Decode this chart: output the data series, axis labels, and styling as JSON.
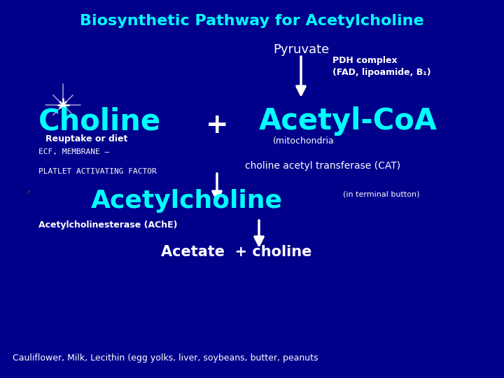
{
  "bg_color": "#00008B",
  "title": "Biosynthetic Pathway for Acetylcholine",
  "title_color": "#00FFFF",
  "title_fontsize": 16,
  "pyruvate_label": "Pyruvate",
  "pdh_label": "PDH complex\n(FAD, lipoamide, B₁)",
  "choline_label": "Choline",
  "choline_sub1": "Reuptake or diet",
  "choline_sub2": "ECF, MEMBRANE –",
  "choline_sub3": "PLATLET ACTIVATING FACTOR",
  "plus_label": "+",
  "acetylcoa_label": "Acetyl-CoA",
  "acetylcoa_sub": "(mitochondria",
  "cat_label": "choline acetyl transferase (CAT)",
  "acetylcholine_label": "Acetylcholine",
  "ach_sub": "(in terminal button)",
  "ache_label": "Acetylcholinesterase (AChE)",
  "acetate_label": "Acetate  + choline",
  "footer": "Cauliflower, Milk, Lecithin (egg yolks, liver, soybeans, butter, peanuts",
  "cyan": "#00FFFF",
  "white": "#FFFFFF",
  "green": "#008000",
  "arrow_color": "#FFFFFF",
  "star_color": "#AAAAFF"
}
